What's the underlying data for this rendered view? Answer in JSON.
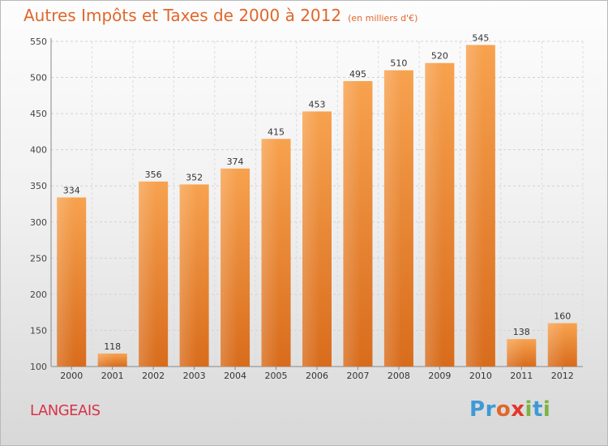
{
  "header": {
    "title": "Autres Impôts et Taxes de 2000 à 2012",
    "unit": "(en milliers d'€)"
  },
  "footer": {
    "town": "LANGEAIS",
    "logo_letters": [
      "P",
      "r",
      "o",
      "x",
      "i",
      "t",
      "i"
    ],
    "logo_colors": [
      "#3d9ad6",
      "#3d9ad6",
      "#e0672c",
      "#e4362b",
      "#7cb342",
      "#3d9ad6",
      "#7cb342"
    ]
  },
  "chart_data": {
    "type": "bar",
    "title": "Autres Impôts et Taxes de 2000 à 2012",
    "categories": [
      "2000",
      "2001",
      "2002",
      "2003",
      "2004",
      "2005",
      "2006",
      "2007",
      "2008",
      "2009",
      "2010",
      "2011",
      "2012"
    ],
    "values": [
      334,
      118,
      356,
      352,
      374,
      415,
      453,
      495,
      510,
      520,
      545,
      138,
      160
    ],
    "ylim": [
      100,
      550
    ],
    "yticks": [
      100,
      150,
      200,
      250,
      300,
      350,
      400,
      450,
      500,
      550
    ],
    "grid": true,
    "bar_color": "#f0963e",
    "xlabel": "",
    "ylabel": ""
  }
}
